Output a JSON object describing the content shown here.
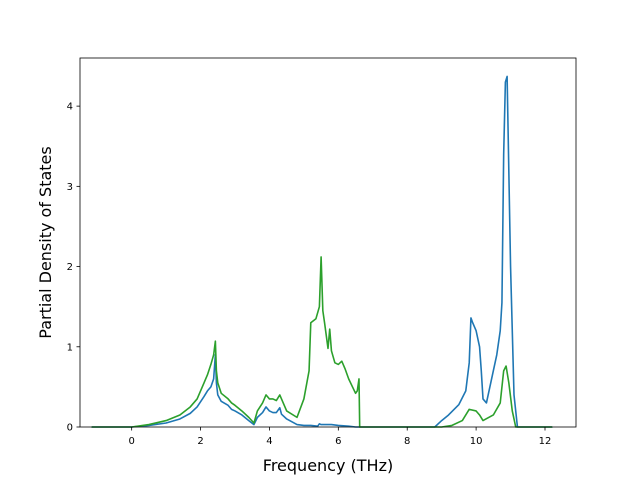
{
  "chart_data": {
    "type": "line",
    "xlabel": "Frequency (THz)",
    "ylabel": "Partial Density of States",
    "xlim": [
      -1.5,
      12.9
    ],
    "ylim": [
      0,
      4.6
    ],
    "xticks": [
      0,
      2,
      4,
      6,
      8,
      10,
      12
    ],
    "xtick_labels": [
      "0",
      "2",
      "4",
      "6",
      "8",
      "10",
      "12"
    ],
    "yticks": [
      0,
      1,
      2,
      3,
      4
    ],
    "ytick_labels": [
      "0",
      "1",
      "2",
      "3",
      "4"
    ],
    "grid": false,
    "legend": "none",
    "series": [
      {
        "color": "#1f77b4",
        "x": [
          -1.15,
          0.0,
          0.5,
          1.0,
          1.4,
          1.7,
          1.9,
          2.1,
          2.2,
          2.3,
          2.38,
          2.43,
          2.46,
          2.5,
          2.6,
          2.8,
          2.9,
          3.0,
          3.2,
          3.4,
          3.55,
          3.65,
          3.8,
          3.9,
          4.0,
          4.1,
          4.2,
          4.3,
          4.35,
          4.5,
          4.8,
          5.0,
          5.2,
          5.4,
          5.45,
          5.5,
          5.8,
          6.0,
          6.3,
          6.5,
          6.6,
          7.0,
          8.8,
          9.0,
          9.2,
          9.5,
          9.7,
          9.8,
          9.85,
          9.9,
          10.0,
          10.1,
          10.15,
          10.2,
          10.3,
          10.5,
          10.6,
          10.7,
          10.75,
          10.8,
          10.85,
          10.9,
          11.0,
          11.1,
          11.2,
          12.2
        ],
        "y": [
          0.0,
          0.0,
          0.02,
          0.05,
          0.1,
          0.17,
          0.25,
          0.38,
          0.45,
          0.5,
          0.6,
          0.9,
          0.55,
          0.4,
          0.32,
          0.27,
          0.22,
          0.2,
          0.15,
          0.08,
          0.03,
          0.12,
          0.18,
          0.25,
          0.2,
          0.18,
          0.18,
          0.24,
          0.16,
          0.1,
          0.03,
          0.02,
          0.02,
          0.01,
          0.04,
          0.03,
          0.03,
          0.02,
          0.01,
          0.0,
          0.0,
          0.0,
          0.0,
          0.08,
          0.15,
          0.28,
          0.45,
          0.8,
          1.36,
          1.3,
          1.2,
          1.0,
          0.7,
          0.35,
          0.3,
          0.7,
          0.9,
          1.2,
          1.55,
          3.4,
          4.3,
          4.37,
          2.0,
          0.4,
          0.0,
          0.0
        ]
      },
      {
        "color": "#2ca02c",
        "x": [
          -1.15,
          0.0,
          0.5,
          1.0,
          1.4,
          1.7,
          1.9,
          2.1,
          2.2,
          2.3,
          2.38,
          2.43,
          2.46,
          2.5,
          2.6,
          2.8,
          2.9,
          3.0,
          3.2,
          3.4,
          3.55,
          3.65,
          3.8,
          3.9,
          4.0,
          4.1,
          4.2,
          4.3,
          4.35,
          4.5,
          4.8,
          5.0,
          5.15,
          5.2,
          5.35,
          5.45,
          5.5,
          5.55,
          5.6,
          5.7,
          5.75,
          5.8,
          5.9,
          6.0,
          6.1,
          6.2,
          6.3,
          6.5,
          6.55,
          6.6,
          6.62,
          7.0,
          8.8,
          9.0,
          9.3,
          9.6,
          9.8,
          10.0,
          10.1,
          10.2,
          10.5,
          10.7,
          10.8,
          10.87,
          10.95,
          11.05,
          11.15,
          12.2
        ],
        "y": [
          0.0,
          0.0,
          0.03,
          0.08,
          0.15,
          0.25,
          0.35,
          0.55,
          0.65,
          0.78,
          0.9,
          1.07,
          0.7,
          0.55,
          0.42,
          0.35,
          0.3,
          0.27,
          0.2,
          0.12,
          0.05,
          0.2,
          0.3,
          0.4,
          0.35,
          0.35,
          0.33,
          0.4,
          0.35,
          0.2,
          0.12,
          0.35,
          0.7,
          1.3,
          1.35,
          1.5,
          2.12,
          1.45,
          1.3,
          0.98,
          1.22,
          0.95,
          0.8,
          0.78,
          0.82,
          0.72,
          0.6,
          0.42,
          0.45,
          0.6,
          0.0,
          0.0,
          0.0,
          0.0,
          0.02,
          0.08,
          0.22,
          0.2,
          0.15,
          0.08,
          0.15,
          0.3,
          0.7,
          0.76,
          0.55,
          0.2,
          0.0,
          0.0
        ]
      }
    ]
  }
}
